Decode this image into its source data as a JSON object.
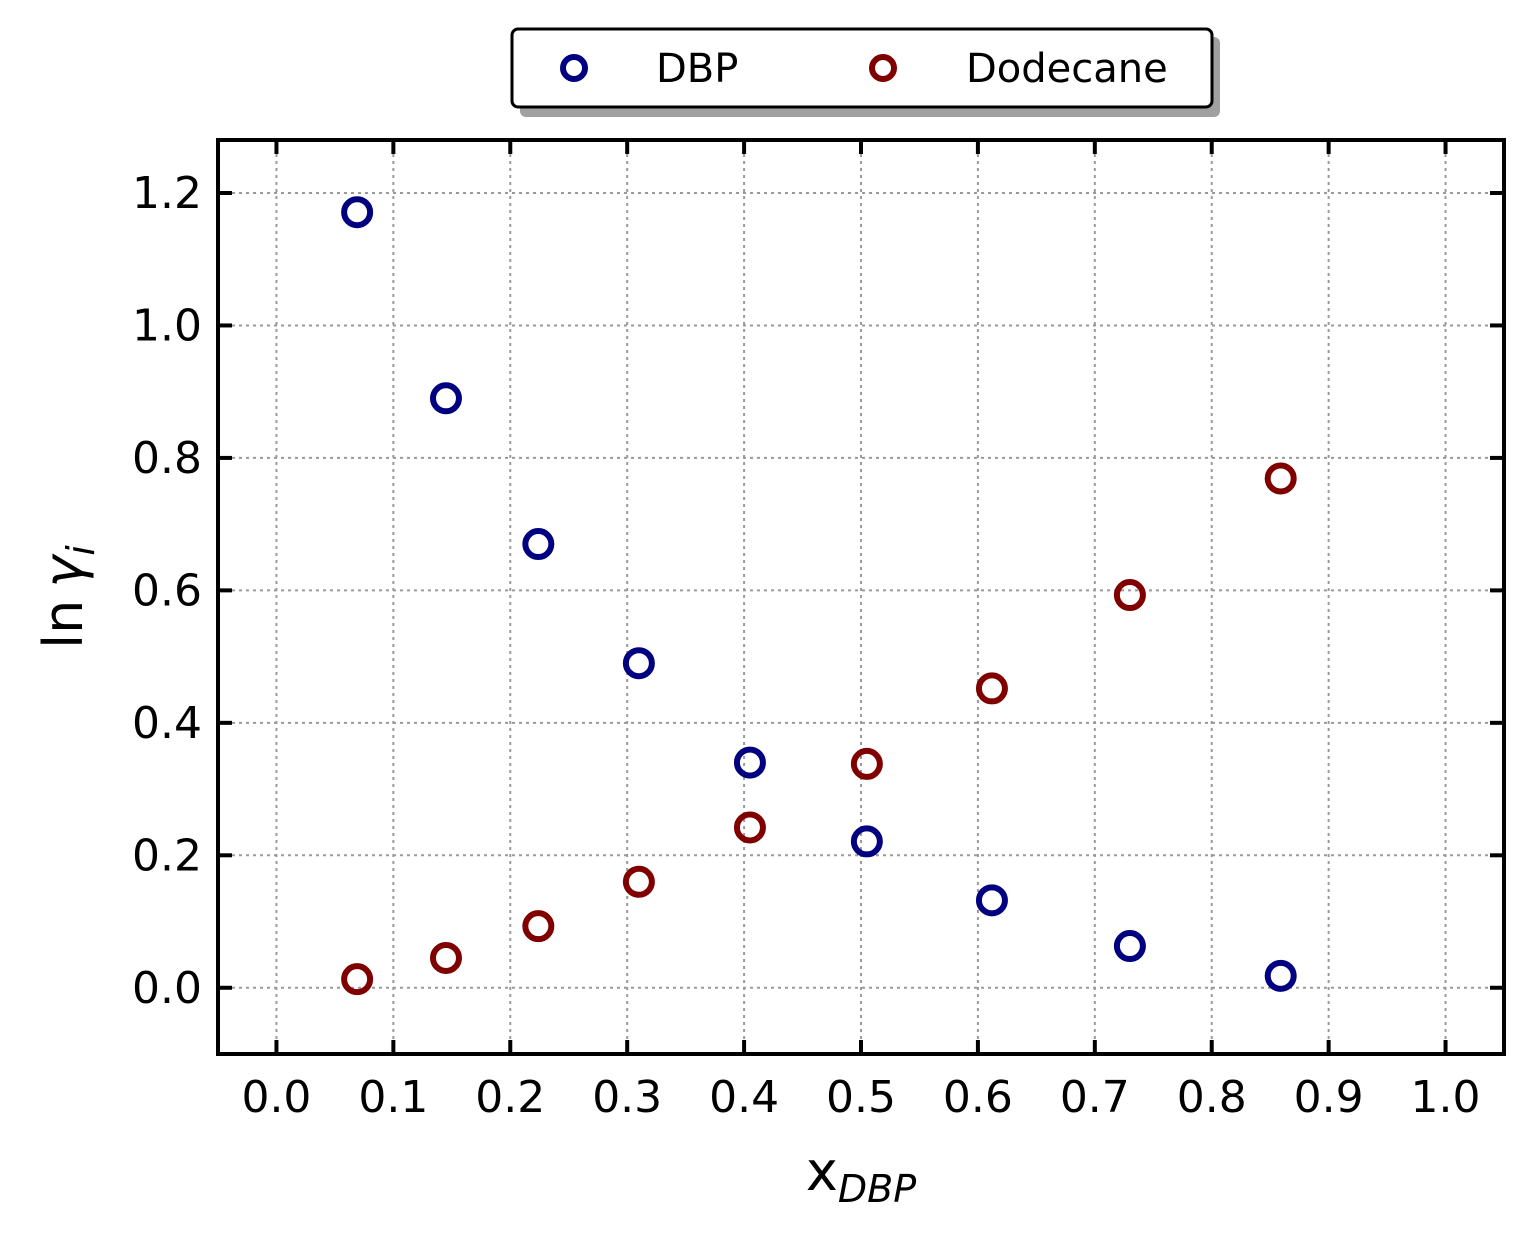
{
  "chart_data": {
    "type": "scatter",
    "title": "",
    "xlabel": "x",
    "xlabel_subscript": "DBP",
    "ylabel_prefix": "ln",
    "ylabel_symbol": "γ",
    "ylabel_subscript": "i",
    "xlim": [
      -0.05,
      1.05
    ],
    "ylim": [
      -0.1,
      1.28
    ],
    "xticks": [
      0.0,
      0.1,
      0.2,
      0.3,
      0.4,
      0.5,
      0.6,
      0.7,
      0.8,
      0.9,
      1.0
    ],
    "xtick_labels": [
      "0.0",
      "0.1",
      "0.2",
      "0.3",
      "0.4",
      "0.5",
      "0.6",
      "0.7",
      "0.8",
      "0.9",
      "1.0"
    ],
    "yticks": [
      0.0,
      0.2,
      0.4,
      0.6,
      0.8,
      1.0,
      1.2
    ],
    "ytick_labels": [
      "0.0",
      "0.2",
      "0.4",
      "0.6",
      "0.8",
      "1.0",
      "1.2"
    ],
    "grid": true,
    "legend_position": "top-center-outside",
    "series": [
      {
        "name": "DBP",
        "color": "#000080",
        "x": [
          0.069,
          0.145,
          0.224,
          0.31,
          0.405,
          0.505,
          0.612,
          0.73,
          0.859
        ],
        "y": [
          1.171,
          0.89,
          0.67,
          0.49,
          0.34,
          0.221,
          0.132,
          0.063,
          0.018
        ]
      },
      {
        "name": "Dodecane",
        "color": "#800000",
        "x": [
          0.069,
          0.145,
          0.224,
          0.31,
          0.405,
          0.505,
          0.612,
          0.73,
          0.859
        ],
        "y": [
          0.013,
          0.045,
          0.093,
          0.16,
          0.242,
          0.338,
          0.452,
          0.593,
          0.769
        ]
      }
    ]
  }
}
